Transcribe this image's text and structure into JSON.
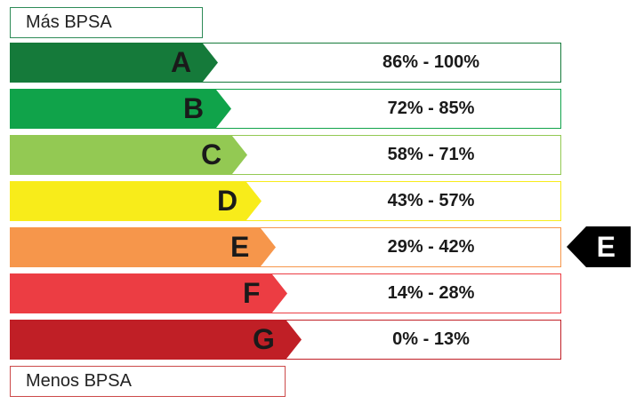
{
  "top_label": "Más BPSA",
  "bottom_label": "Menos BPSA",
  "ratings": [
    {
      "letter": "A",
      "range": "86% - 100%",
      "color": "#157a3a",
      "border": "#157a3a"
    },
    {
      "letter": "B",
      "range": "72% - 85%",
      "color": "#10a34a",
      "border": "#10a34a"
    },
    {
      "letter": "C",
      "range": "58% - 71%",
      "color": "#93c953",
      "border": "#93c953"
    },
    {
      "letter": "D",
      "range": "43% - 57%",
      "color": "#f8ec1a",
      "border": "#f8ec1a"
    },
    {
      "letter": "E",
      "range": "29% - 42%",
      "color": "#f6964b",
      "border": "#f6964b"
    },
    {
      "letter": "F",
      "range": "14% - 28%",
      "color": "#ec3d43",
      "border": "#ec3d43"
    },
    {
      "letter": "G",
      "range": "0% - 13%",
      "color": "#c01f26",
      "border": "#c01f26"
    }
  ],
  "current_rating": "E"
}
